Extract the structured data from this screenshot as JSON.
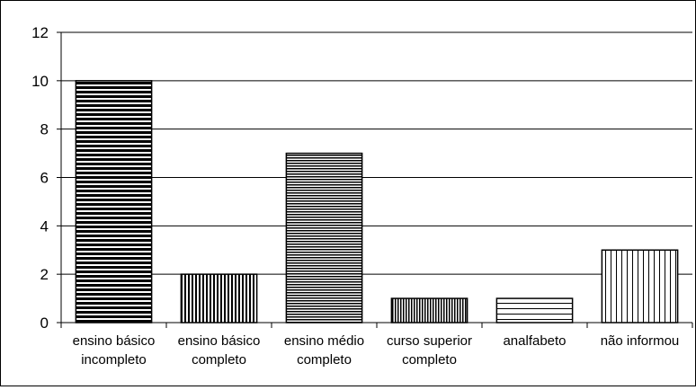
{
  "chart_data": {
    "type": "bar",
    "categories": [
      [
        "ensino básico",
        "incompleto"
      ],
      [
        "ensino básico",
        "completo"
      ],
      [
        "ensino médio",
        "completo"
      ],
      [
        "curso superior",
        "completo"
      ],
      [
        "analfabeto"
      ],
      [
        "não informou"
      ]
    ],
    "values": [
      10,
      2,
      7,
      1,
      1,
      3
    ],
    "patterns": [
      "hstripe-dense",
      "vstripe-dense",
      "hstripe-fine",
      "vstripe-fine",
      "hstripe-wide",
      "vstripe-wide"
    ],
    "ylim": [
      0,
      12
    ],
    "yticks": [
      "0",
      "2",
      "4",
      "6",
      "8",
      "10",
      "12"
    ],
    "grid": true,
    "colors": {
      "ink": "#000000",
      "background": "#ffffff"
    }
  }
}
